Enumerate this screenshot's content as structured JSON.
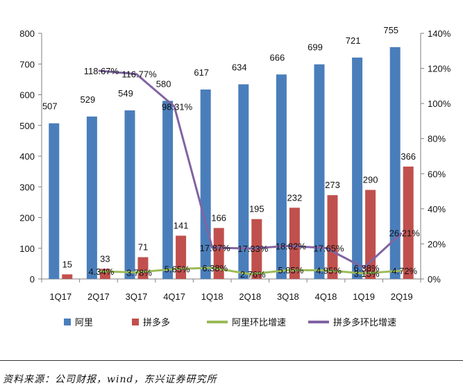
{
  "chart_data": {
    "type": "bar",
    "categories": [
      "1Q17",
      "2Q17",
      "3Q17",
      "4Q17",
      "1Q18",
      "2Q18",
      "3Q18",
      "4Q18",
      "1Q19",
      "2Q19"
    ],
    "ylim": [
      0,
      800
    ],
    "y_ticks": [
      "0",
      "100",
      "200",
      "300",
      "400",
      "500",
      "600",
      "700",
      "800"
    ],
    "y2lim": [
      0,
      140
    ],
    "y2_ticks": [
      "0%",
      "20%",
      "40%",
      "60%",
      "80%",
      "100%",
      "120%",
      "140%"
    ],
    "legend_position": "bottom",
    "series": [
      {
        "name": "阿里",
        "kind": "bar",
        "axis": "left",
        "color": "#4a7ebb",
        "values": [
          507,
          529,
          549,
          580,
          617,
          634,
          666,
          699,
          721,
          755
        ],
        "labels": [
          "507",
          "529",
          "549",
          "580",
          "617",
          "634",
          "666",
          "699",
          "721",
          "755"
        ]
      },
      {
        "name": "拼多多",
        "kind": "bar",
        "axis": "left",
        "color": "#c0504d",
        "values": [
          15,
          33,
          71,
          141,
          166,
          195,
          232,
          273,
          290,
          366
        ],
        "labels": [
          "15",
          "33",
          "71",
          "141",
          "166",
          "195",
          "232",
          "273",
          "290",
          "366"
        ]
      },
      {
        "name": "阿里环比增速",
        "kind": "line",
        "axis": "right",
        "color": "#9bbb59",
        "values": [
          null,
          4.34,
          3.78,
          5.65,
          6.38,
          2.76,
          5.05,
          4.95,
          3.15,
          4.72
        ],
        "labels": [
          "",
          "4.34%",
          "3.78%",
          "5.65%",
          "6.38%",
          "2.76%",
          "5.05%",
          "4.95%",
          "3.15%",
          "4.72%"
        ]
      },
      {
        "name": "拼多多环比增速",
        "kind": "line",
        "axis": "right",
        "color": "#8064a2",
        "values": [
          null,
          118.67,
          116.77,
          98.31,
          17.87,
          17.33,
          18.82,
          17.65,
          6.38,
          26.21
        ],
        "labels": [
          "",
          "118.67%",
          "116.77%",
          "98.31%",
          "17.87%",
          "17.33%",
          "18.82%",
          "17.65%",
          "6.38%",
          "26.21%"
        ]
      }
    ]
  },
  "source_note": "资料来源：公司财报，wind，东兴证券研究所"
}
